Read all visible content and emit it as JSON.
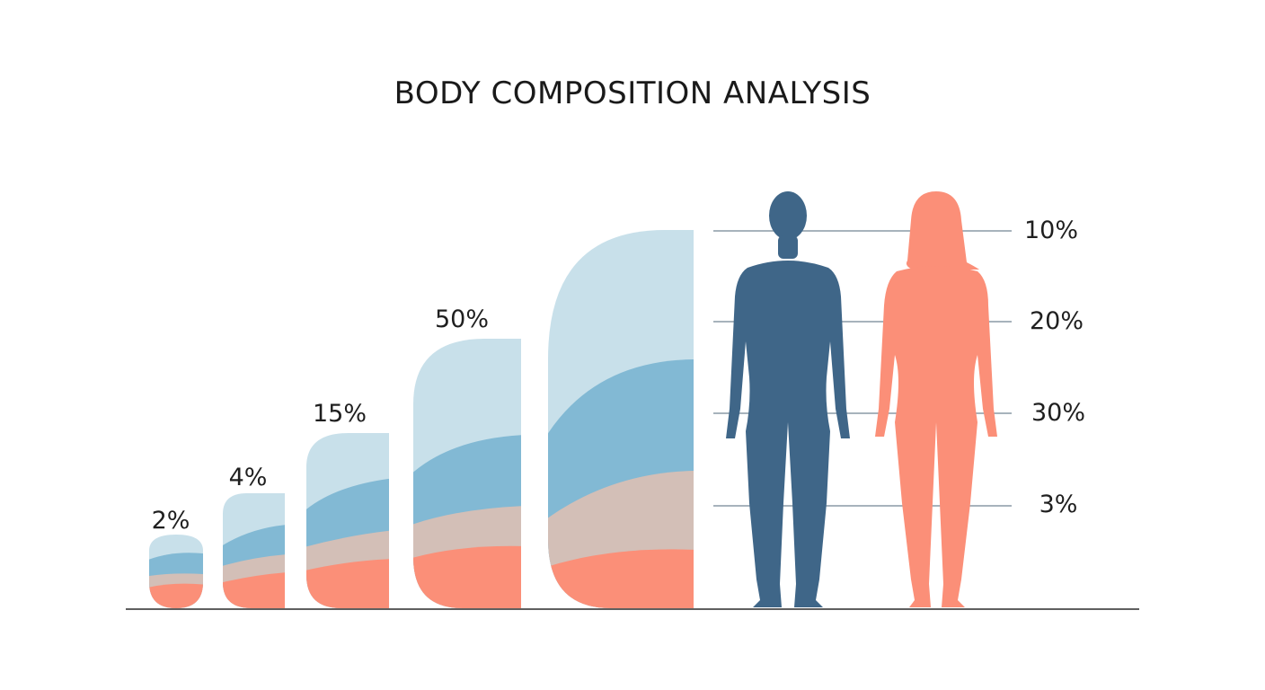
{
  "title": "BODY COMPOSITION ANALYSIS",
  "chart_data": {
    "type": "area",
    "title": "BODY COMPOSITION ANALYSIS",
    "categories": [
      "2%",
      "4%",
      "15%",
      "50%",
      ""
    ],
    "block_labels": [
      "2%",
      "4%",
      "15%",
      "50%"
    ],
    "layer_colors": [
      "#fb8f78",
      "#d3bfb7",
      "#82b9d4",
      "#c8e0ea"
    ],
    "reference_lines": [
      "10%",
      "20%",
      "30%",
      "3%"
    ],
    "reference_line_color": "#8a9aa6",
    "figures": [
      {
        "name": "male-silhouette",
        "color": "#3f6688"
      },
      {
        "name": "female-silhouette",
        "color": "#fb8f78"
      }
    ]
  }
}
